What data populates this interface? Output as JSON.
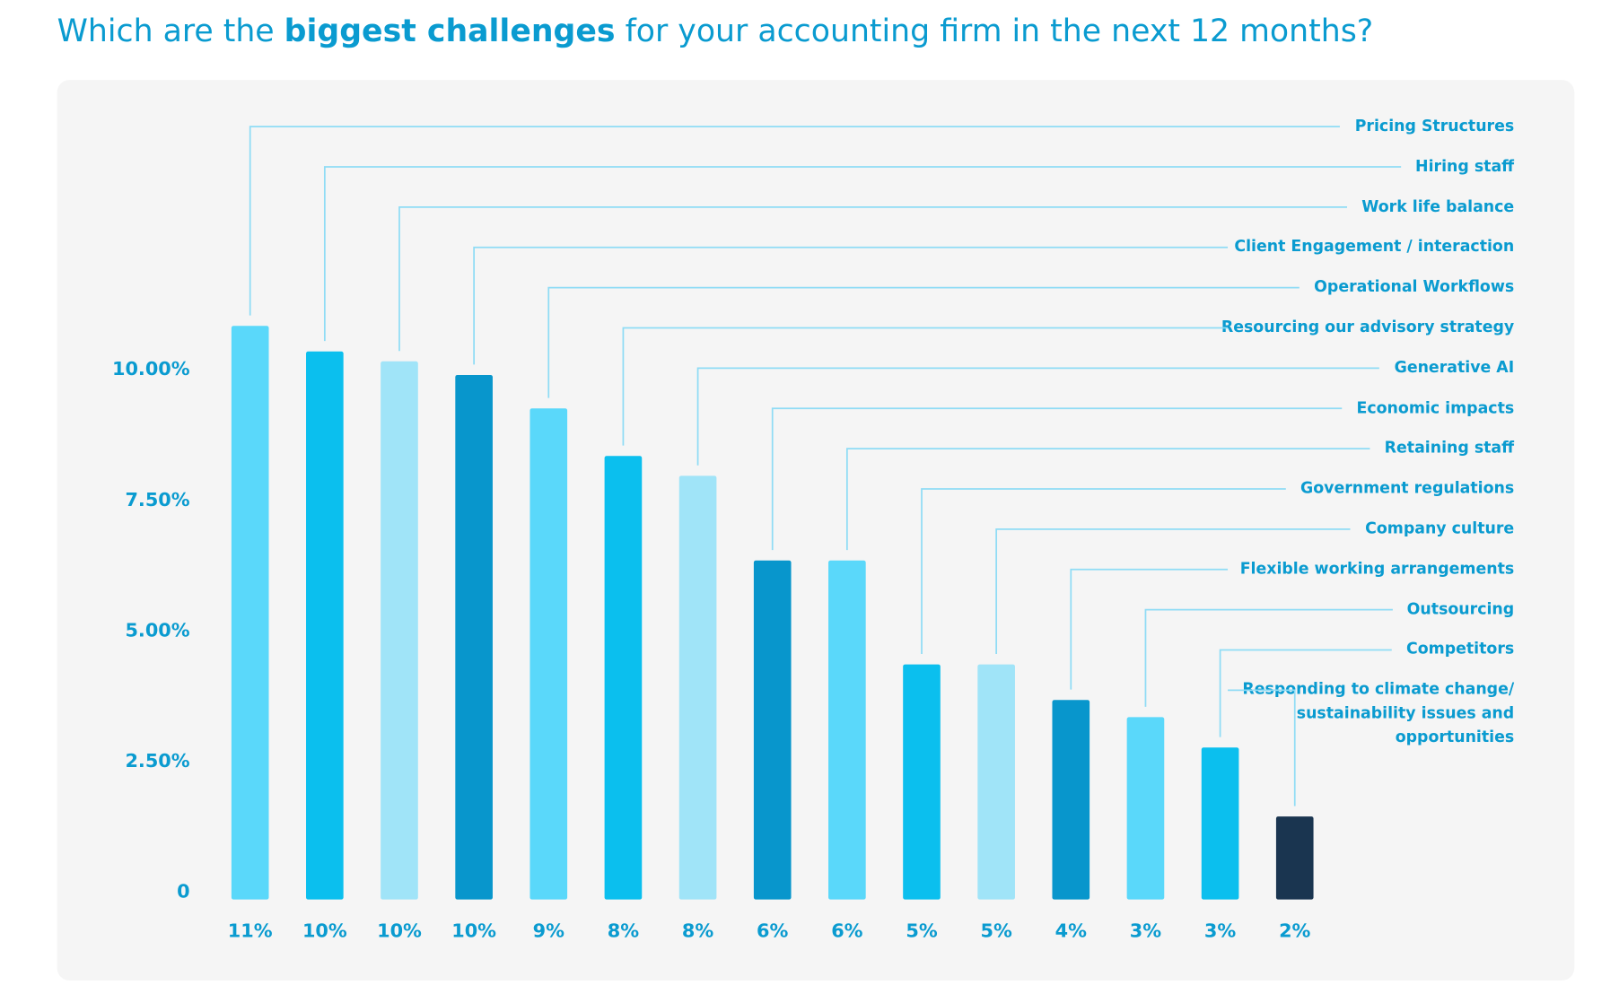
{
  "chart_data": {
    "type": "bar",
    "title": [
      "Which are the ",
      "biggest challenges",
      " for your accounting firm in the next 12 months?"
    ],
    "categories": [
      "Pricing Structures",
      "Hiring staff",
      "Work life balance",
      "Client Engagement / interaction",
      "Operational Workflows",
      "Resourcing our advisory strategy",
      "Generative AI",
      "Economic impacts",
      "Retaining staff",
      "Government regulations",
      "Company culture",
      "Flexible working arrangements",
      "Outsourcing",
      "Competitors",
      "Responding to climate change/ sustainability issues and opportunities"
    ],
    "values": [
      10.98,
      10.49,
      10.3,
      10.04,
      9.4,
      8.49,
      8.11,
      6.49,
      6.49,
      4.5,
      4.5,
      3.82,
      3.49,
      2.91,
      1.59
    ],
    "value_labels": [
      "11%",
      "10%",
      "10%",
      "10%",
      "9%",
      "8%",
      "8%",
      "6%",
      "6%",
      "5%",
      "5%",
      "4%",
      "3%",
      "3%",
      "2%"
    ],
    "colors": [
      "#5ad8fa",
      "#0bbfee",
      "#a0e4f8",
      "#0896cc",
      "#5ad8fa",
      "#0bbfee",
      "#a0e4f8",
      "#0896cc",
      "#5ad8fa",
      "#0bbfee",
      "#a0e4f8",
      "#0896cc",
      "#5ad8fa",
      "#0bbfee",
      "#1a3550"
    ],
    "ylim": [
      0,
      11
    ],
    "yticks": [
      0,
      {
        "value": 2.5,
        "label": "2.50%"
      },
      {
        "value": 5,
        "label": "5.00%"
      },
      {
        "value": 7.5,
        "label": "7.50%"
      },
      {
        "value": 10,
        "label": "10.00%"
      }
    ]
  }
}
